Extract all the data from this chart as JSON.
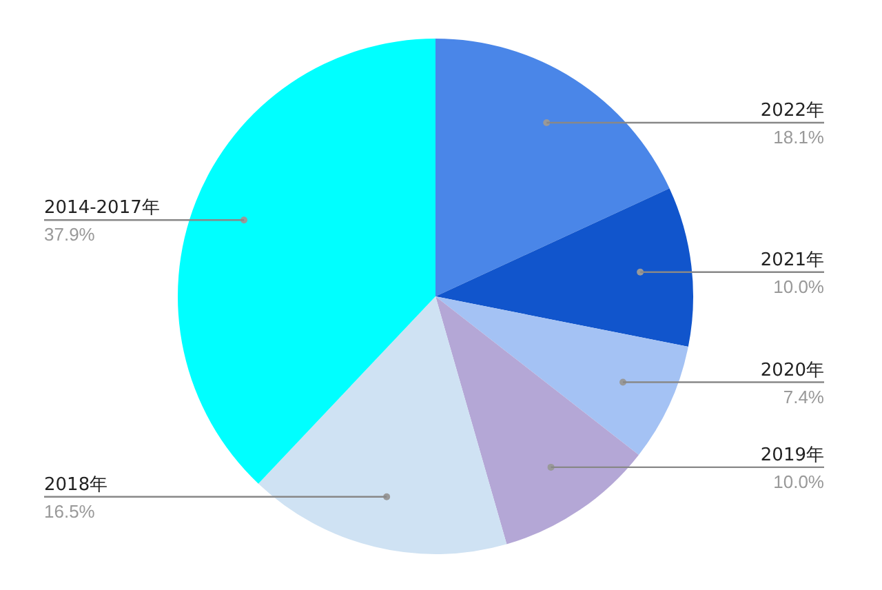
{
  "chart_data": {
    "type": "pie",
    "categories": [
      "2022年",
      "2021年",
      "2020年",
      "2019年",
      "2018年",
      "2014-2017年"
    ],
    "values": [
      18.1,
      10.0,
      7.4,
      10.0,
      16.5,
      37.9
    ],
    "value_labels": [
      "18.1%",
      "10.0%",
      "7.4%",
      "10.0%",
      "16.5%",
      "37.9%"
    ],
    "colors": [
      "#4a86e8",
      "#1155cc",
      "#a4c2f4",
      "#b4a7d6",
      "#cfe2f3",
      "#00ffff"
    ],
    "legend": false
  }
}
